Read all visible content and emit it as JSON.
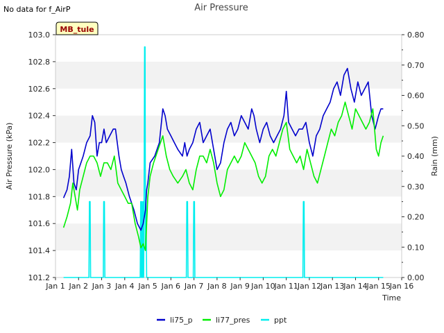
{
  "note": "No data for f_AirP",
  "chart_data": {
    "type": "line",
    "title": "Air Pressure",
    "xlabel": "Time",
    "ylabel": "Air Pressure (kPa)",
    "y2label": "Rain (mm)",
    "station_label": "MB_tule",
    "xlim": [
      1,
      16
    ],
    "ylim": [
      101.2,
      103.0
    ],
    "y2lim": [
      0.0,
      0.8
    ],
    "x_ticks": [
      1,
      2,
      3,
      4,
      5,
      6,
      7,
      8,
      9,
      10,
      11,
      12,
      13,
      14,
      15,
      16
    ],
    "x_tick_labels": [
      "Jan 1",
      "Jan 2",
      "Jan 3",
      "Jan 4",
      "Jan 5",
      "Jan 6",
      "Jan 7",
      "Jan 8",
      "Jan 9",
      "Jan 10",
      "Jan 11",
      "Jan 12",
      "Jan 13",
      "Jan 14",
      "Jan 15",
      "Jan 16"
    ],
    "y_ticks": [
      101.2,
      101.4,
      101.6,
      101.8,
      102.0,
      102.2,
      102.4,
      102.6,
      102.8,
      103.0
    ],
    "y_tick_labels": [
      "101.2",
      "101.4",
      "101.6",
      "101.8",
      "102.0",
      "102.2",
      "102.4",
      "102.6",
      "102.8",
      "103.0"
    ],
    "y2_ticks": [
      0.0,
      0.1,
      0.2,
      0.3,
      0.4,
      0.5,
      0.6,
      0.7,
      0.8
    ],
    "y2_tick_labels": [
      "0.00",
      "0.10",
      "0.20",
      "0.30",
      "0.40",
      "0.50",
      "0.60",
      "0.70",
      "0.80"
    ],
    "grid": "horizontal bands",
    "legend_position": "bottom-center",
    "series": [
      {
        "name": "li75_p",
        "color": "#0000cc",
        "axis": "left",
        "x": [
          1.35,
          1.5,
          1.6,
          1.7,
          1.8,
          1.9,
          2.0,
          2.1,
          2.2,
          2.35,
          2.5,
          2.6,
          2.7,
          2.8,
          2.9,
          3.0,
          3.1,
          3.2,
          3.35,
          3.5,
          3.6,
          3.75,
          3.85,
          3.95,
          4.05,
          4.2,
          4.4,
          4.55,
          4.7,
          4.8,
          4.9,
          4.95,
          5.0,
          5.1,
          5.3,
          5.5,
          5.65,
          5.75,
          5.85,
          6.0,
          6.15,
          6.3,
          6.5,
          6.6,
          6.7,
          6.8,
          6.95,
          7.1,
          7.25,
          7.4,
          7.55,
          7.7,
          7.85,
          8.0,
          8.15,
          8.3,
          8.45,
          8.6,
          8.75,
          8.9,
          9.05,
          9.2,
          9.35,
          9.5,
          9.6,
          9.7,
          9.85,
          10.0,
          10.15,
          10.3,
          10.45,
          10.6,
          10.75,
          10.9,
          11.0,
          11.1,
          11.25,
          11.4,
          11.55,
          11.7,
          11.85,
          12.0,
          12.15,
          12.3,
          12.45,
          12.6,
          12.75,
          12.9,
          13.05,
          13.2,
          13.35,
          13.5,
          13.65,
          13.8,
          13.95,
          14.1,
          14.25,
          14.4,
          14.55,
          14.7,
          14.85,
          15.0,
          15.1,
          15.2
        ],
        "y": [
          101.79,
          101.85,
          101.95,
          102.15,
          101.9,
          101.85,
          102.0,
          102.05,
          102.1,
          102.2,
          102.25,
          102.4,
          102.35,
          102.1,
          102.2,
          102.2,
          102.3,
          102.2,
          102.25,
          102.3,
          102.3,
          102.1,
          102.0,
          101.95,
          101.9,
          101.8,
          101.7,
          101.6,
          101.55,
          101.6,
          101.7,
          101.85,
          101.9,
          102.05,
          102.1,
          102.2,
          102.45,
          102.4,
          102.3,
          102.25,
          102.2,
          102.15,
          102.1,
          102.2,
          102.1,
          102.15,
          102.2,
          102.3,
          102.35,
          102.2,
          102.25,
          102.3,
          102.15,
          102.0,
          102.05,
          102.2,
          102.3,
          102.35,
          102.25,
          102.3,
          102.4,
          102.35,
          102.3,
          102.45,
          102.4,
          102.3,
          102.2,
          102.3,
          102.35,
          102.25,
          102.2,
          102.25,
          102.3,
          102.4,
          102.58,
          102.35,
          102.3,
          102.25,
          102.3,
          102.3,
          102.35,
          102.2,
          102.1,
          102.25,
          102.3,
          102.4,
          102.45,
          102.5,
          102.6,
          102.65,
          102.55,
          102.7,
          102.75,
          102.6,
          102.5,
          102.65,
          102.55,
          102.6,
          102.65,
          102.4,
          102.3,
          102.4,
          102.45,
          102.45
        ]
      },
      {
        "name": "li77_pres",
        "color": "#00ee00",
        "axis": "left",
        "x": [
          1.35,
          1.5,
          1.65,
          1.75,
          1.85,
          1.95,
          2.05,
          2.2,
          2.35,
          2.5,
          2.65,
          2.8,
          2.95,
          3.1,
          3.25,
          3.4,
          3.55,
          3.7,
          3.85,
          4.0,
          4.15,
          4.3,
          4.45,
          4.6,
          4.7,
          4.8,
          4.9,
          5.0,
          5.1,
          5.25,
          5.45,
          5.65,
          5.8,
          5.95,
          6.1,
          6.3,
          6.5,
          6.65,
          6.8,
          6.95,
          7.1,
          7.25,
          7.4,
          7.55,
          7.7,
          7.85,
          8.0,
          8.15,
          8.3,
          8.45,
          8.6,
          8.75,
          8.9,
          9.05,
          9.2,
          9.35,
          9.5,
          9.65,
          9.8,
          9.95,
          10.1,
          10.25,
          10.4,
          10.55,
          10.7,
          10.85,
          11.0,
          11.15,
          11.3,
          11.45,
          11.6,
          11.75,
          11.9,
          12.05,
          12.2,
          12.35,
          12.5,
          12.65,
          12.8,
          12.95,
          13.1,
          13.25,
          13.4,
          13.55,
          13.7,
          13.85,
          14.0,
          14.15,
          14.3,
          14.45,
          14.6,
          14.75,
          14.9,
          15.0,
          15.1,
          15.2
        ],
        "y": [
          101.57,
          101.65,
          101.75,
          101.9,
          101.8,
          101.7,
          101.85,
          101.95,
          102.05,
          102.1,
          102.1,
          102.05,
          101.95,
          102.05,
          102.05,
          102.0,
          102.1,
          101.9,
          101.85,
          101.8,
          101.75,
          101.75,
          101.6,
          101.5,
          101.42,
          101.45,
          101.4,
          101.8,
          101.95,
          102.05,
          102.15,
          102.25,
          102.1,
          102.0,
          101.95,
          101.9,
          101.95,
          102.0,
          101.9,
          101.85,
          102.0,
          102.1,
          102.1,
          102.05,
          102.15,
          102.05,
          101.9,
          101.8,
          101.85,
          102.0,
          102.05,
          102.1,
          102.05,
          102.1,
          102.2,
          102.15,
          102.1,
          102.05,
          101.95,
          101.9,
          101.95,
          102.1,
          102.15,
          102.1,
          102.2,
          102.3,
          102.35,
          102.15,
          102.1,
          102.05,
          102.1,
          102.0,
          102.15,
          102.05,
          101.95,
          101.9,
          102.0,
          102.1,
          102.2,
          102.3,
          102.25,
          102.35,
          102.4,
          102.5,
          102.4,
          102.3,
          102.45,
          102.4,
          102.35,
          102.3,
          102.35,
          102.45,
          102.15,
          102.1,
          102.2,
          102.25
        ]
      },
      {
        "name": "ppt",
        "color": "#00eeee",
        "axis": "right",
        "x": [
          1.35,
          2.45,
          2.47,
          2.5,
          2.52,
          3.07,
          3.09,
          3.12,
          3.14,
          4.67,
          4.69,
          4.72,
          4.74,
          4.77,
          4.79,
          4.82,
          4.84,
          4.86,
          4.88,
          4.9,
          4.92,
          4.95,
          6.67,
          6.69,
          6.72,
          6.74,
          6.97,
          6.99,
          7.02,
          7.04,
          11.72,
          11.74,
          11.77,
          11.79,
          15.2
        ],
        "y": [
          0.0,
          0.0,
          0.25,
          0.25,
          0.0,
          0.0,
          0.25,
          0.25,
          0.0,
          0.0,
          0.25,
          0.0,
          0.25,
          0.0,
          0.25,
          0.0,
          0.25,
          0.76,
          0.76,
          0.1,
          0.25,
          0.0,
          0.0,
          0.25,
          0.25,
          0.0,
          0.0,
          0.25,
          0.25,
          0.0,
          0.0,
          0.25,
          0.25,
          0.0,
          0.0
        ]
      }
    ]
  }
}
